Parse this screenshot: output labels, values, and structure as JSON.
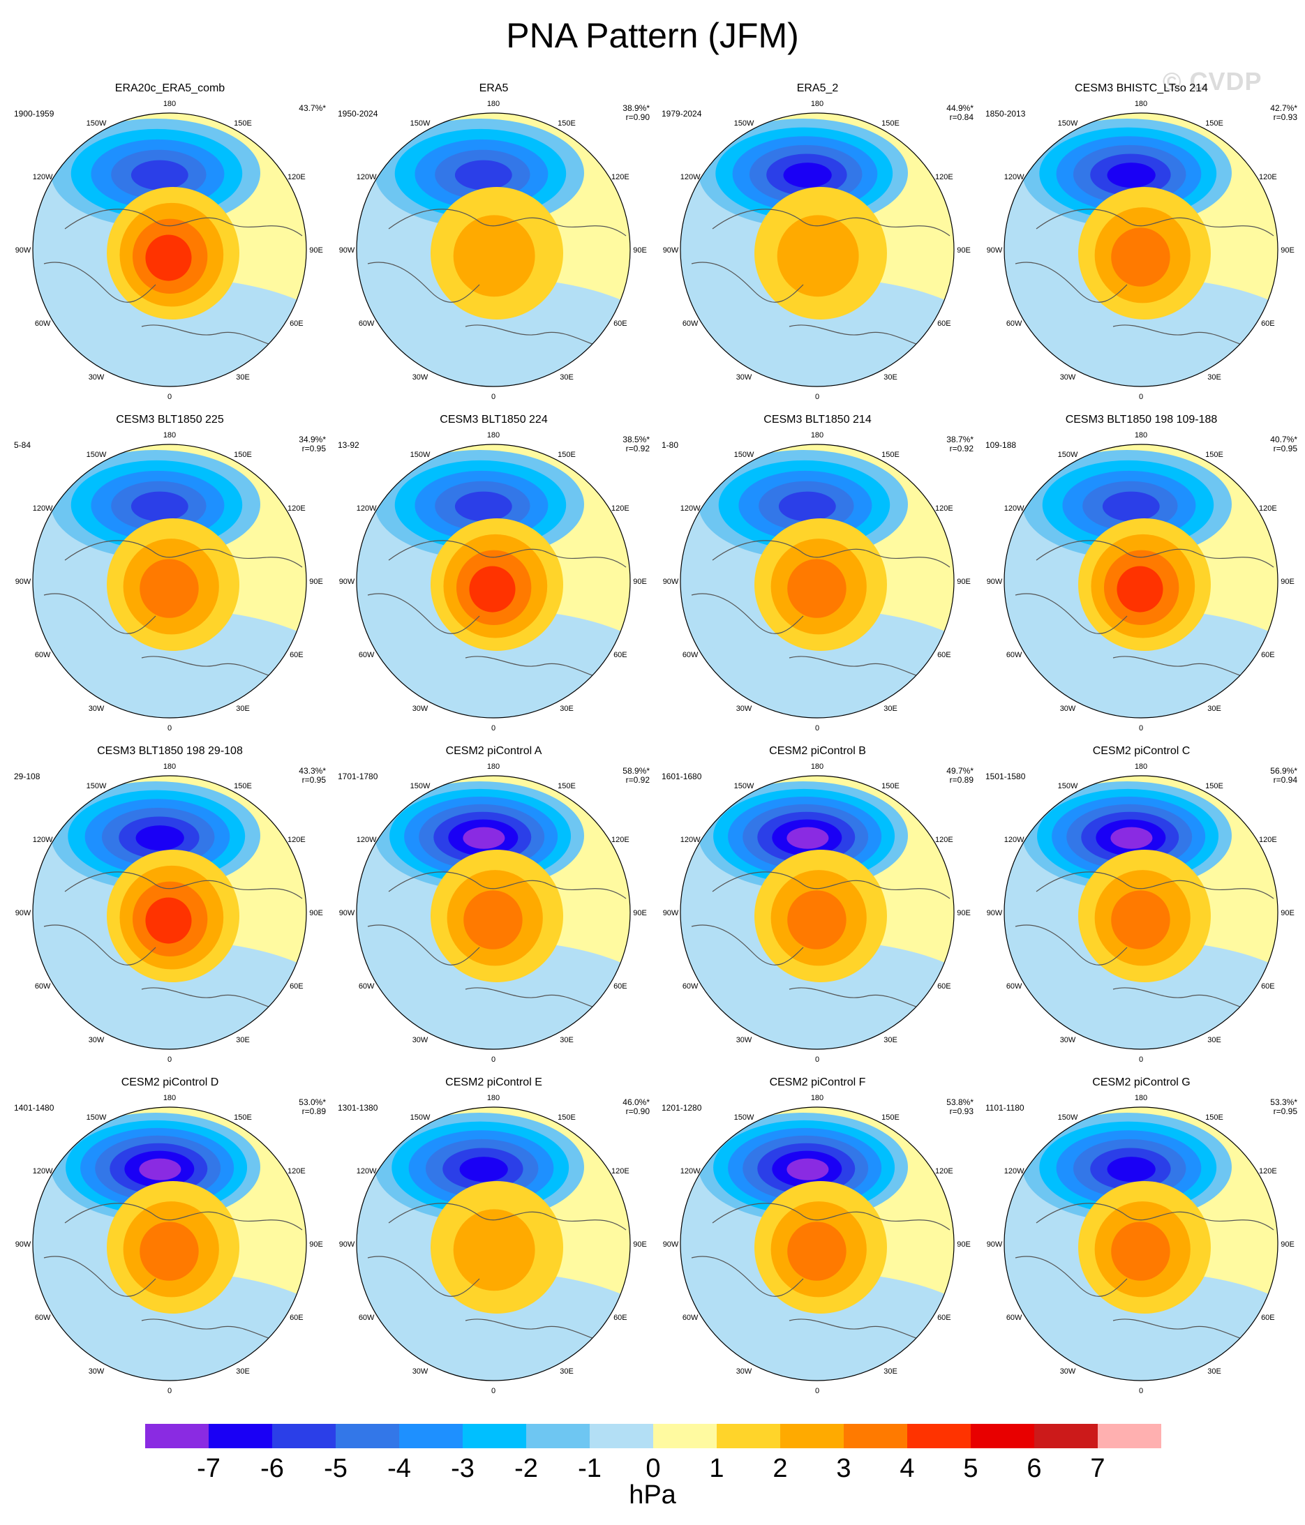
{
  "title": "PNA Pattern (JFM)",
  "watermark": "© CVDP",
  "lon_labels": {
    "top": "180",
    "bottom": "0",
    "l1": "150W",
    "l2": "120W",
    "l3": "90W",
    "l4": "60W",
    "l5": "30W",
    "r1": "150E",
    "r2": "120E",
    "r3": "90E",
    "r4": "60E",
    "r5": "30E"
  },
  "panels": [
    {
      "title": "ERA20c_ERA5_comb",
      "period": "1900-1959",
      "pct": "43.7%*",
      "r": "",
      "neg": -5,
      "pos": 4
    },
    {
      "title": "ERA5",
      "period": "1950-2024",
      "pct": "38.9%*",
      "r": "r=0.90",
      "neg": -5,
      "pos": 2
    },
    {
      "title": "ERA5_2",
      "period": "1979-2024",
      "pct": "44.9%*",
      "r": "r=0.84",
      "neg": -6,
      "pos": 2
    },
    {
      "title": "CESM3 BHISTC_LTso 214",
      "period": "1850-2013",
      "pct": "42.7%*",
      "r": "r=0.93",
      "neg": -6,
      "pos": 3
    },
    {
      "title": "CESM3 BLT1850 225",
      "period": "5-84",
      "pct": "34.9%*",
      "r": "r=0.95",
      "neg": -5,
      "pos": 3
    },
    {
      "title": "CESM3 BLT1850 224",
      "period": "13-92",
      "pct": "38.5%*",
      "r": "r=0.92",
      "neg": -5,
      "pos": 4
    },
    {
      "title": "CESM3 BLT1850 214",
      "period": "1-80",
      "pct": "38.7%*",
      "r": "r=0.92",
      "neg": -5,
      "pos": 3
    },
    {
      "title": "CESM3 BLT1850 198 109-188",
      "period": "109-188",
      "pct": "40.7%*",
      "r": "r=0.95",
      "neg": -5,
      "pos": 4
    },
    {
      "title": "CESM3 BLT1850 198 29-108",
      "period": "29-108",
      "pct": "43.3%*",
      "r": "r=0.95",
      "neg": -6,
      "pos": 4
    },
    {
      "title": "CESM2 piControl A",
      "period": "1701-1780",
      "pct": "58.9%*",
      "r": "r=0.92",
      "neg": -7,
      "pos": 3
    },
    {
      "title": "CESM2 piControl B",
      "period": "1601-1680",
      "pct": "49.7%*",
      "r": "r=0.89",
      "neg": -7,
      "pos": 3
    },
    {
      "title": "CESM2 piControl C",
      "period": "1501-1580",
      "pct": "56.9%*",
      "r": "r=0.94",
      "neg": -7,
      "pos": 3
    },
    {
      "title": "CESM2 piControl D",
      "period": "1401-1480",
      "pct": "53.0%*",
      "r": "r=0.89",
      "neg": -7,
      "pos": 3
    },
    {
      "title": "CESM2 piControl E",
      "period": "1301-1380",
      "pct": "46.0%*",
      "r": "r=0.90",
      "neg": -6,
      "pos": 2
    },
    {
      "title": "CESM2 piControl F",
      "period": "1201-1280",
      "pct": "53.8%*",
      "r": "r=0.93",
      "neg": -7,
      "pos": 3
    },
    {
      "title": "CESM2 piControl G",
      "period": "1101-1180",
      "pct": "53.3%*",
      "r": "r=0.95",
      "neg": -6,
      "pos": 3
    }
  ],
  "colorbar": {
    "colors": [
      "#8a2be2",
      "#1a00f5",
      "#2b3fe8",
      "#3377e8",
      "#1e90ff",
      "#00bfff",
      "#6ec6f2",
      "#b3dff5",
      "#fffaa0",
      "#ffd42a",
      "#ffaa00",
      "#ff7a00",
      "#ff3300",
      "#e80000",
      "#cc1a1a",
      "#ffb0b0"
    ],
    "labels": [
      "-7",
      "-6",
      "-5",
      "-4",
      "-3",
      "-2",
      "-1",
      "0",
      "1",
      "2",
      "3",
      "4",
      "5",
      "6",
      "7"
    ],
    "units": "hPa"
  }
}
